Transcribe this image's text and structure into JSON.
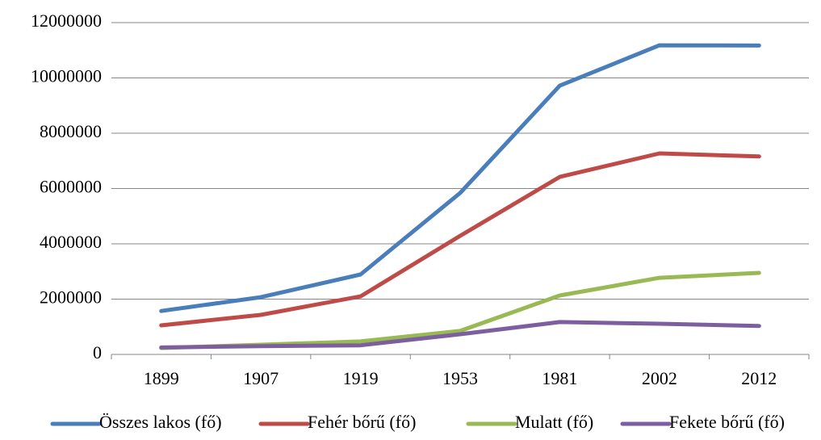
{
  "chart_data": {
    "type": "line",
    "categories": [
      "1899",
      "1907",
      "1919",
      "1953",
      "1981",
      "2002",
      "2012"
    ],
    "series": [
      {
        "name": "Összes lakos (fő)",
        "color": "#4a7ebb",
        "values": [
          1572000,
          2070000,
          2890000,
          5840000,
          9720000,
          11180000,
          11170000
        ]
      },
      {
        "name": "Fehér bőrű (fő)",
        "color": "#be4b48",
        "values": [
          1050000,
          1430000,
          2100000,
          4290000,
          6420000,
          7270000,
          7160000
        ]
      },
      {
        "name": "Mulatt (fő)",
        "color": "#98b954",
        "values": [
          230000,
          350000,
          470000,
          850000,
          2130000,
          2770000,
          2950000
        ]
      },
      {
        "name": "Fekete bőrű (fő)",
        "color": "#7d5fa0",
        "values": [
          250000,
          300000,
          330000,
          730000,
          1170000,
          1110000,
          1030000
        ]
      }
    ],
    "ylim": [
      0,
      12000000
    ],
    "yticks": [
      0,
      2000000,
      4000000,
      6000000,
      8000000,
      10000000,
      12000000
    ],
    "grid": true,
    "legend": "bottom"
  }
}
